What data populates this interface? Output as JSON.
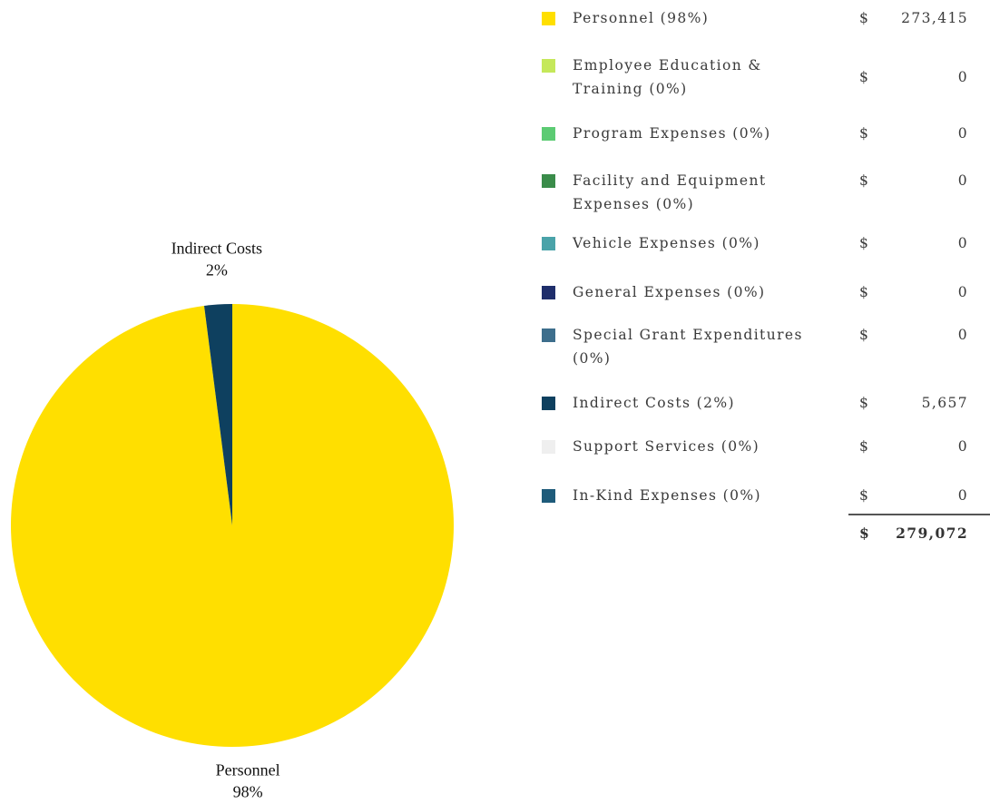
{
  "chart_data": {
    "type": "pie",
    "categories": [
      "Personnel",
      "Employee Education & Training",
      "Program Expenses",
      "Facility and Equipment Expenses",
      "Vehicle Expenses",
      "General Expenses",
      "Special Grant Expenditures",
      "Indirect Costs",
      "Support Services",
      "In-Kind Expenses"
    ],
    "legend_labels": [
      "Personnel (98%)",
      "Employee Education & Training (0%)",
      "Program Expenses (0%)",
      "Facility and Equipment Expenses (0%)",
      "Vehicle Expenses (0%)",
      "General Expenses (0%)",
      "Special Grant Expenditures (0%)",
      "Indirect Costs (2%)",
      "Support Services (0%)",
      "In-Kind Expenses (0%)"
    ],
    "values": [
      273415,
      0,
      0,
      0,
      0,
      0,
      0,
      5657,
      0,
      0
    ],
    "value_labels": [
      "273,415",
      "0",
      "0",
      "0",
      "0",
      "0",
      "0",
      "5,657",
      "0",
      "0"
    ],
    "percent_labels": [
      "98%",
      "0%",
      "0%",
      "0%",
      "0%",
      "0%",
      "0%",
      "2%",
      "0%",
      "0%"
    ],
    "colors": [
      "#ffdf00",
      "#c5e85a",
      "#5ccb73",
      "#3a8c4a",
      "#4aa3a9",
      "#1f2e6b",
      "#3d6e8c",
      "#0e405f",
      "#efefef",
      "#1e5b7a"
    ],
    "currency": "$",
    "total": "279,072"
  }
}
